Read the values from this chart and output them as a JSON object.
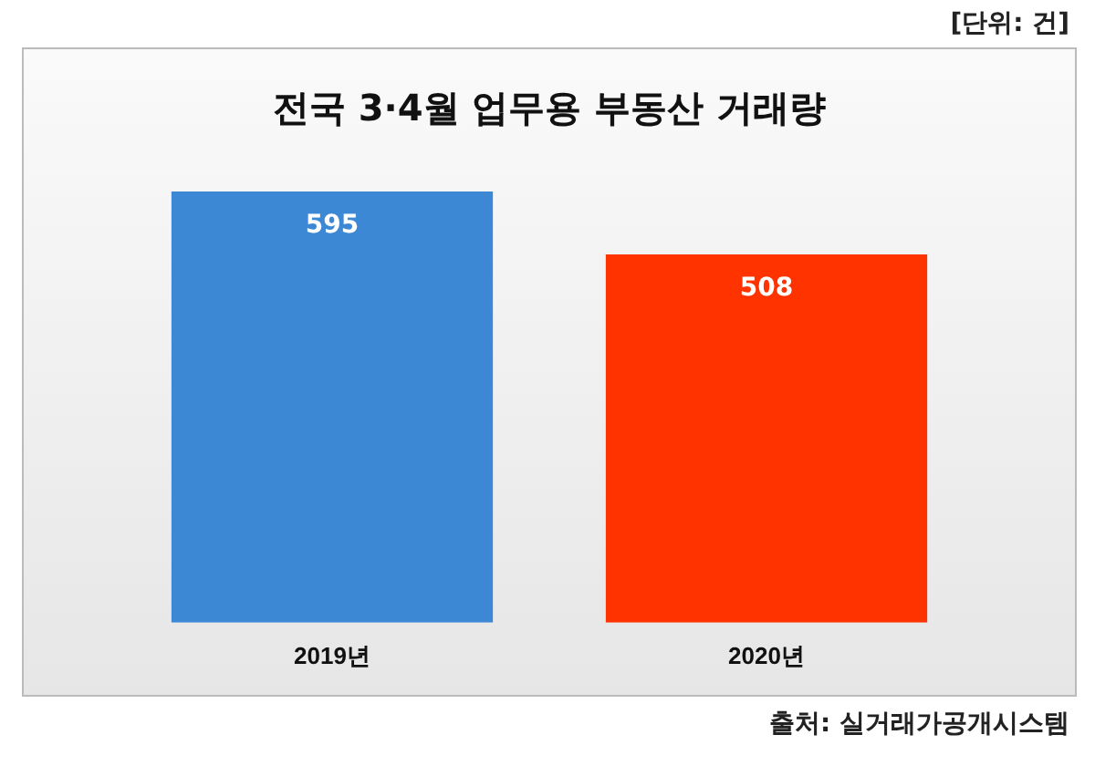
{
  "chart_data": {
    "type": "bar",
    "title": "전국 3·4월 업무용 부동산 거래량",
    "categories": [
      "2019년",
      "2020년"
    ],
    "values": [
      595,
      508
    ],
    "colors": [
      "#3d88d4",
      "#ff3300"
    ],
    "data_labels": true,
    "annotations": [
      "[단위: 건]",
      "출처: 실거래가공개시스템"
    ]
  }
}
